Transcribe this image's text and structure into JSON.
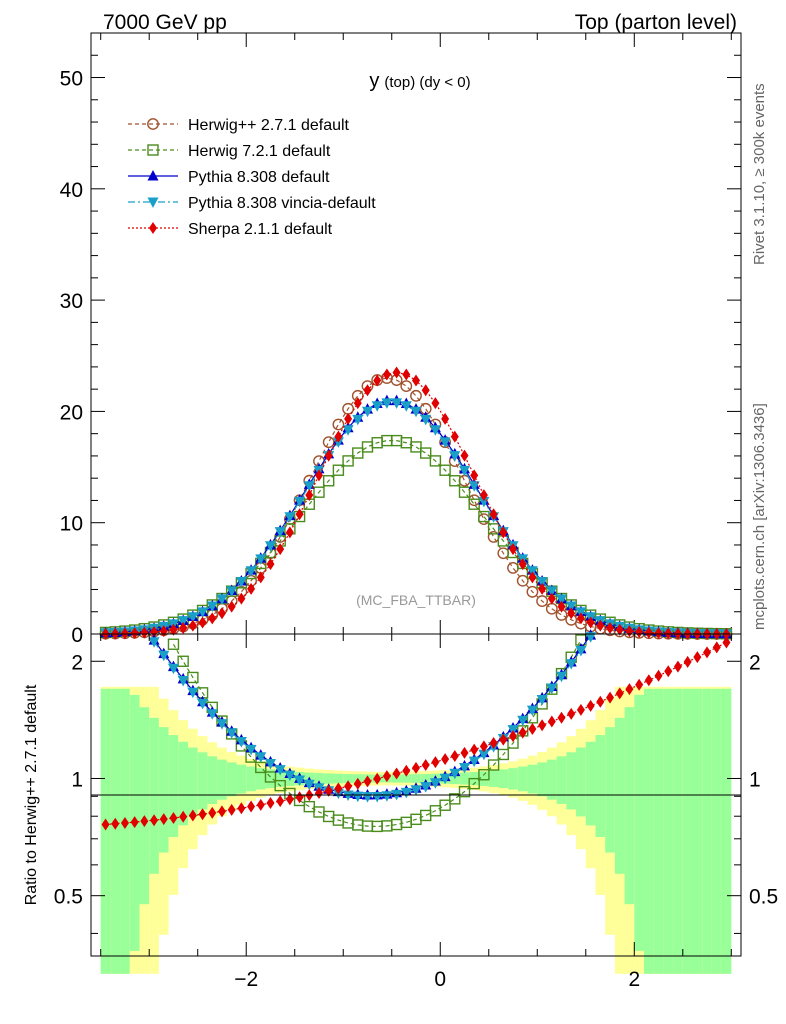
{
  "header": {
    "left": "7000 GeV pp",
    "right": "Top (parton level)"
  },
  "side": {
    "rivet": "Rivet 3.1.10, ≥ 300k events",
    "mcplots": "mcplots.cern.ch [arXiv:1306.3436]"
  },
  "chart_data": [
    {
      "type": "line",
      "panel": "main",
      "title": "y (top) (dy < 0)",
      "title_main": "y",
      "title_rest": "(top) (dy < 0)",
      "watermark": "(MC_FBA_TTBAR)",
      "xlim": [
        -3.6,
        3.1
      ],
      "ylim": [
        0,
        54
      ],
      "yticks": [
        0,
        10,
        20,
        30,
        40,
        50
      ],
      "ytick_labels": [
        "0",
        "10",
        "20",
        "30",
        "40",
        "50"
      ],
      "legend_position": "top-left",
      "series": [
        {
          "name": "Herwig++ 2.7.1 default",
          "color": "#a0522d",
          "marker": "circle-open",
          "dash": "4,3",
          "x_from": -3.5,
          "x_to": 3.0,
          "peak": 23.0,
          "center": -0.55,
          "width": 0.79
        },
        {
          "name": "Herwig 7.2.1 default",
          "color": "#4a8c1c",
          "marker": "square-open",
          "dash": "4,3",
          "x_from": -3.5,
          "x_to": 3.0,
          "peak": 17.4,
          "center": -0.5,
          "width": 0.95
        },
        {
          "name": "Pythia 8.308 default",
          "color": "#0000cc",
          "marker": "triangle-up",
          "dash": "",
          "x_from": -3.5,
          "x_to": 3.0,
          "peak": 21.0,
          "center": -0.5,
          "width": 0.9
        },
        {
          "name": "Pythia 8.308 vincia-default",
          "color": "#1a9fc9",
          "marker": "triangle-down",
          "dash": "7,3,2,3",
          "x_from": -3.5,
          "x_to": 3.0,
          "peak": 20.8,
          "center": -0.5,
          "width": 0.9
        },
        {
          "name": "Sherpa 2.1.1 default",
          "color": "#e00000",
          "marker": "diamond",
          "dash": "2,2",
          "x_from": -3.5,
          "x_to": 3.0,
          "peak": 23.5,
          "center": -0.45,
          "width": 0.8
        }
      ]
    },
    {
      "type": "line",
      "panel": "ratio",
      "ylabel": "Ratio to Herwig++ 2.7.1 default",
      "xlim": [
        -3.6,
        3.1
      ],
      "ylim": [
        0.35,
        2.35
      ],
      "xticks": [
        -2,
        0,
        2
      ],
      "xtick_labels": [
        "−2",
        "0",
        "2"
      ],
      "yticks": [
        0.5,
        1,
        2
      ],
      "ytick_labels": [
        "0.5",
        "1",
        "2"
      ],
      "reference": 1
    }
  ]
}
